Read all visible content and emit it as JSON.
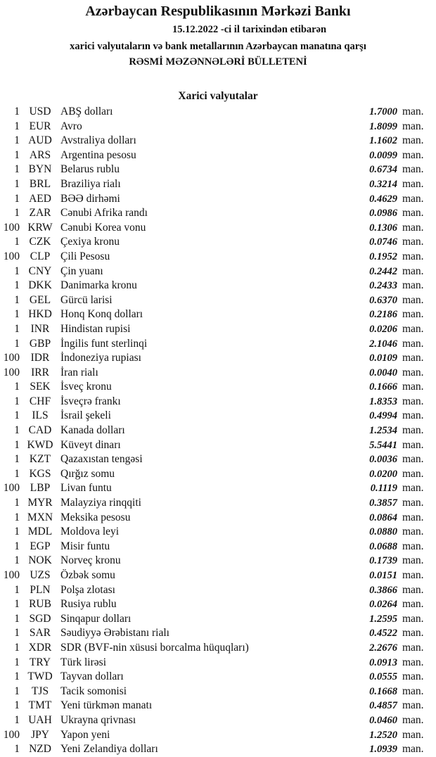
{
  "header": {
    "title": "Azərbaycan Respublikasının Mərkəzi Bankı",
    "date_line": "15.12.2022 -ci il tarixindən etibarən",
    "subtitle": "xarici valyutaların və bank metallarının Azərbaycan manatına qarşı",
    "bulletin": "RƏSMİ MƏZƏNNƏLƏRİ BÜLLETENİ"
  },
  "section_title": "Xarici valyutalar",
  "unit": "man.",
  "rates": [
    {
      "qty": "1",
      "code": "USD",
      "name": "ABŞ dolları",
      "rate": "1.7000"
    },
    {
      "qty": "1",
      "code": "EUR",
      "name": "Avro",
      "rate": "1.8099"
    },
    {
      "qty": "1",
      "code": "AUD",
      "name": "Avstraliya dolları",
      "rate": "1.1602"
    },
    {
      "qty": "1",
      "code": "ARS",
      "name": "Argentina pesosu",
      "rate": "0.0099"
    },
    {
      "qty": "1",
      "code": "BYN",
      "name": "Belarus rublu",
      "rate": "0.6734"
    },
    {
      "qty": "1",
      "code": "BRL",
      "name": "Braziliya rialı",
      "rate": "0.3214"
    },
    {
      "qty": "1",
      "code": "AED",
      "name": "BƏƏ dirhəmi",
      "rate": "0.4629"
    },
    {
      "qty": "1",
      "code": "ZAR",
      "name": "Cənubi Afrika randı",
      "rate": "0.0986"
    },
    {
      "qty": "100",
      "code": "KRW",
      "name": "Cənubi Korea vonu",
      "rate": "0.1306"
    },
    {
      "qty": "1",
      "code": "CZK",
      "name": "Çexiya kronu",
      "rate": "0.0746"
    },
    {
      "qty": "100",
      "code": "CLP",
      "name": "Çili Pesosu",
      "rate": "0.1952"
    },
    {
      "qty": "1",
      "code": "CNY",
      "name": "Çin yuanı",
      "rate": "0.2442"
    },
    {
      "qty": "1",
      "code": "DKK",
      "name": "Danimarka kronu",
      "rate": "0.2433"
    },
    {
      "qty": "1",
      "code": "GEL",
      "name": "Gürcü larisi",
      "rate": "0.6370"
    },
    {
      "qty": "1",
      "code": "HKD",
      "name": "Honq Konq dolları",
      "rate": "0.2186"
    },
    {
      "qty": "1",
      "code": "INR",
      "name": "Hindistan rupisi",
      "rate": "0.0206"
    },
    {
      "qty": "1",
      "code": "GBP",
      "name": "İngilis funt sterlinqi",
      "rate": "2.1046"
    },
    {
      "qty": "100",
      "code": "IDR",
      "name": "İndoneziya rupiası",
      "rate": "0.0109"
    },
    {
      "qty": "100",
      "code": "IRR",
      "name": "İran rialı",
      "rate": "0.0040"
    },
    {
      "qty": "1",
      "code": "SEK",
      "name": "İsveç kronu",
      "rate": "0.1666"
    },
    {
      "qty": "1",
      "code": "CHF",
      "name": "İsveçrə frankı",
      "rate": "1.8353"
    },
    {
      "qty": "1",
      "code": "ILS",
      "name": "İsrail şekeli",
      "rate": "0.4994"
    },
    {
      "qty": "1",
      "code": "CAD",
      "name": "Kanada dolları",
      "rate": "1.2534"
    },
    {
      "qty": "1",
      "code": "KWD",
      "name": "Küveyt dinarı",
      "rate": "5.5441"
    },
    {
      "qty": "1",
      "code": "KZT",
      "name": "Qazaxıstan tengəsi",
      "rate": "0.0036"
    },
    {
      "qty": "1",
      "code": "KGS",
      "name": "Qırğız somu",
      "rate": "0.0200"
    },
    {
      "qty": "100",
      "code": "LBP",
      "name": "Livan funtu",
      "rate": "0.1119"
    },
    {
      "qty": "1",
      "code": "MYR",
      "name": "Malayziya rinqqiti",
      "rate": "0.3857"
    },
    {
      "qty": "1",
      "code": "MXN",
      "name": "Meksika pesosu",
      "rate": "0.0864"
    },
    {
      "qty": "1",
      "code": "MDL",
      "name": "Moldova leyi",
      "rate": "0.0880"
    },
    {
      "qty": "1",
      "code": "EGP",
      "name": "Misir funtu",
      "rate": "0.0688"
    },
    {
      "qty": "1",
      "code": "NOK",
      "name": "Norveç kronu",
      "rate": "0.1739"
    },
    {
      "qty": "100",
      "code": "UZS",
      "name": "Özbək somu",
      "rate": "0.0151"
    },
    {
      "qty": "1",
      "code": "PLN",
      "name": "Polşa zlotası",
      "rate": "0.3866"
    },
    {
      "qty": "1",
      "code": "RUB",
      "name": "Rusiya rublu",
      "rate": "0.0264"
    },
    {
      "qty": "1",
      "code": "SGD",
      "name": "Sinqapur dolları",
      "rate": "1.2595"
    },
    {
      "qty": "1",
      "code": "SAR",
      "name": "Səudiyyə Ərəbistanı rialı",
      "rate": "0.4522"
    },
    {
      "qty": "1",
      "code": "XDR",
      "name": "SDR (BVF-nin xüsusi borcalma hüquqları)",
      "rate": "2.2676"
    },
    {
      "qty": "1",
      "code": "TRY",
      "name": "Türk lirəsi",
      "rate": "0.0913"
    },
    {
      "qty": "1",
      "code": "TWD",
      "name": "Tayvan dolları",
      "rate": "0.0555"
    },
    {
      "qty": "1",
      "code": "TJS",
      "name": "Tacik somonisi",
      "rate": "0.1668"
    },
    {
      "qty": "1",
      "code": "TMT",
      "name": "Yeni türkmən manatı",
      "rate": "0.4857"
    },
    {
      "qty": "1",
      "code": "UAH",
      "name": "Ukrayna qrivnası",
      "rate": "0.0460"
    },
    {
      "qty": "100",
      "code": "JPY",
      "name": "Yapon yeni",
      "rate": "1.2520"
    },
    {
      "qty": "1",
      "code": "NZD",
      "name": "Yeni Zelandiya dolları",
      "rate": "1.0939"
    }
  ]
}
